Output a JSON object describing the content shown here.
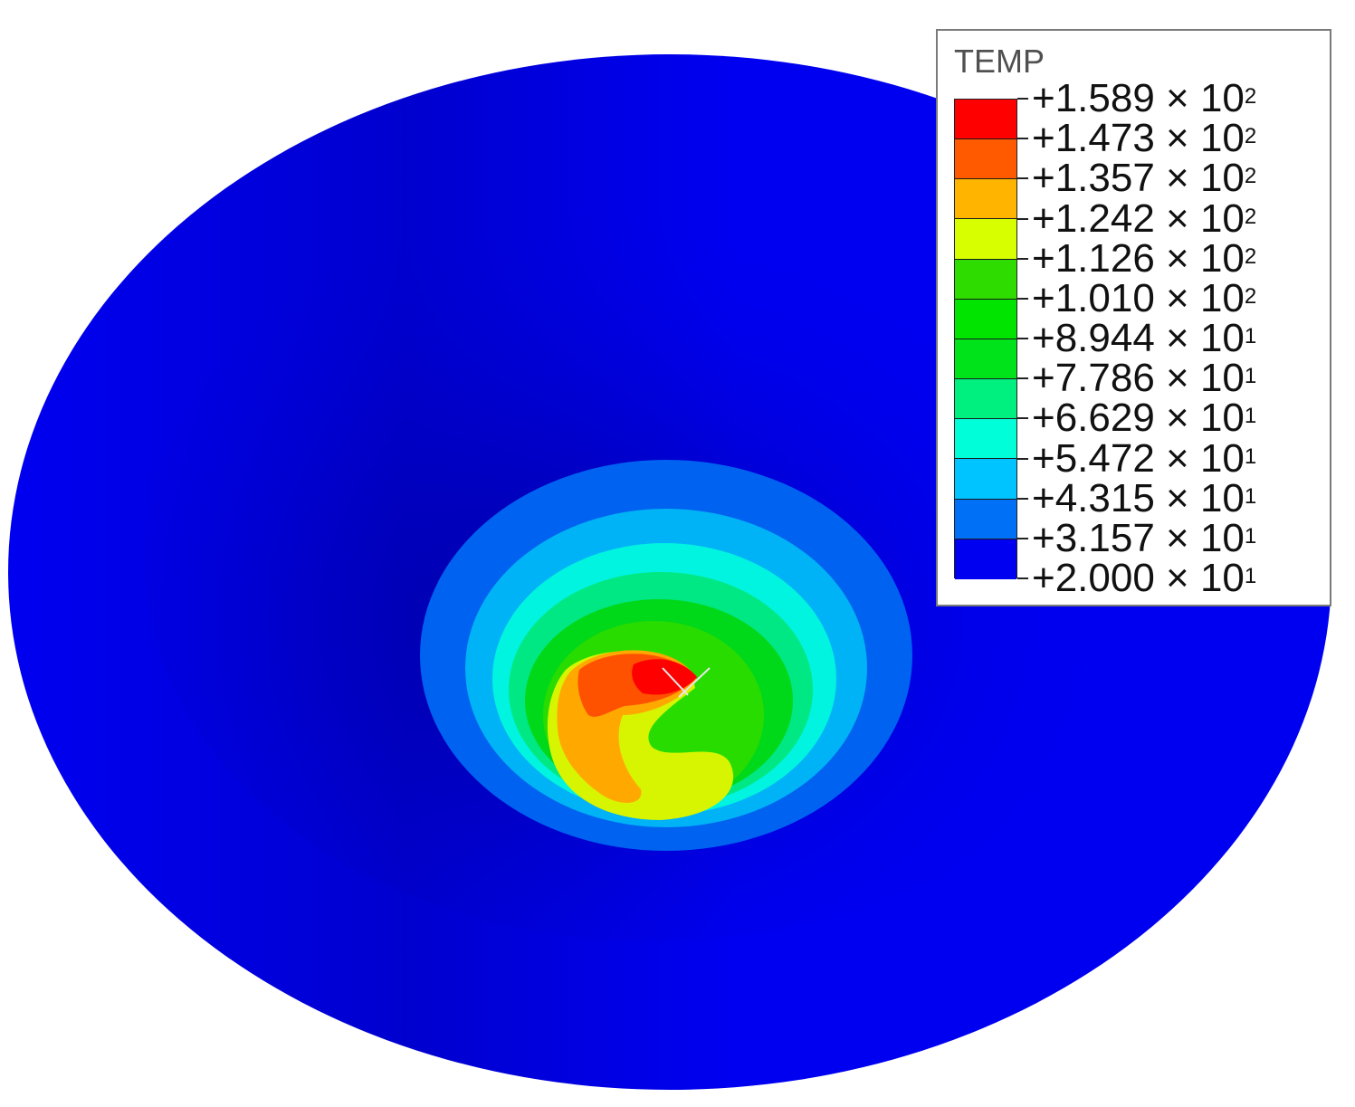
{
  "legend": {
    "title": "TEMP",
    "entries": [
      {
        "label": "+1.589 × 10",
        "exp": "2"
      },
      {
        "label": "+1.473 × 10",
        "exp": "2"
      },
      {
        "label": "+1.357 × 10",
        "exp": "2"
      },
      {
        "label": "+1.242 × 10",
        "exp": "2"
      },
      {
        "label": "+1.126 × 10",
        "exp": "2"
      },
      {
        "label": "+1.010 × 10",
        "exp": "2"
      },
      {
        "label": "+8.944 × 10",
        "exp": "1"
      },
      {
        "label": "+7.786 × 10",
        "exp": "1"
      },
      {
        "label": "+6.629 × 10",
        "exp": "1"
      },
      {
        "label": "+5.472 × 10",
        "exp": "1"
      },
      {
        "label": "+4.315 × 10",
        "exp": "1"
      },
      {
        "label": "+3.157 × 10",
        "exp": "1"
      },
      {
        "label": "+2.000 × 10",
        "exp": "1"
      }
    ],
    "band_colors": [
      "#ff0000",
      "#ff5a00",
      "#ffb400",
      "#d7ff00",
      "#2fdc00",
      "#00e400",
      "#00e31a",
      "#00f080",
      "#00ffd8",
      "#00c4ff",
      "#0070f6",
      "#0000f0"
    ]
  },
  "colors": {
    "background_field": "#0000f0",
    "shade": "#00009a"
  }
}
